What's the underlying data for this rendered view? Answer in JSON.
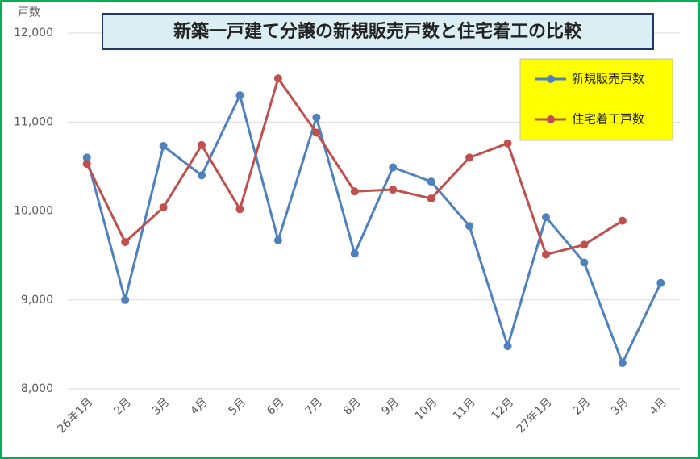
{
  "chart_data": {
    "type": "line",
    "title": "新築一戸建て分譲の新規販売戸数と住宅着工の比較",
    "y_label": "戸数",
    "categories": [
      "26年1月",
      "2月",
      "3月",
      "4月",
      "5月",
      "6月",
      "7月",
      "8月",
      "9月",
      "10月",
      "11月",
      "12月",
      "27年1月",
      "2月",
      "3月",
      "4月"
    ],
    "series": [
      {
        "name": "新規販売戸数",
        "color": "#4f81bd",
        "values": [
          10600,
          9000,
          10730,
          10400,
          11300,
          9670,
          11050,
          9520,
          10490,
          10330,
          9830,
          8480,
          9930,
          9420,
          8290,
          9190
        ]
      },
      {
        "name": "住宅着工戸数",
        "color": "#c0504d",
        "values": [
          10530,
          9650,
          10040,
          10740,
          10020,
          11490,
          10880,
          10220,
          10240,
          10140,
          10600,
          10760,
          9510,
          9620,
          9890,
          null
        ]
      }
    ],
    "ylim": [
      8000,
      12000
    ],
    "yticks": [
      {
        "value": 8000,
        "label": "8,000"
      },
      {
        "value": 9000,
        "label": "9,000"
      },
      {
        "value": 10000,
        "label": "10,000"
      },
      {
        "value": 11000,
        "label": "11,000"
      },
      {
        "value": 12000,
        "label": "12,000"
      }
    ],
    "grid": true,
    "legend": "top-right"
  }
}
